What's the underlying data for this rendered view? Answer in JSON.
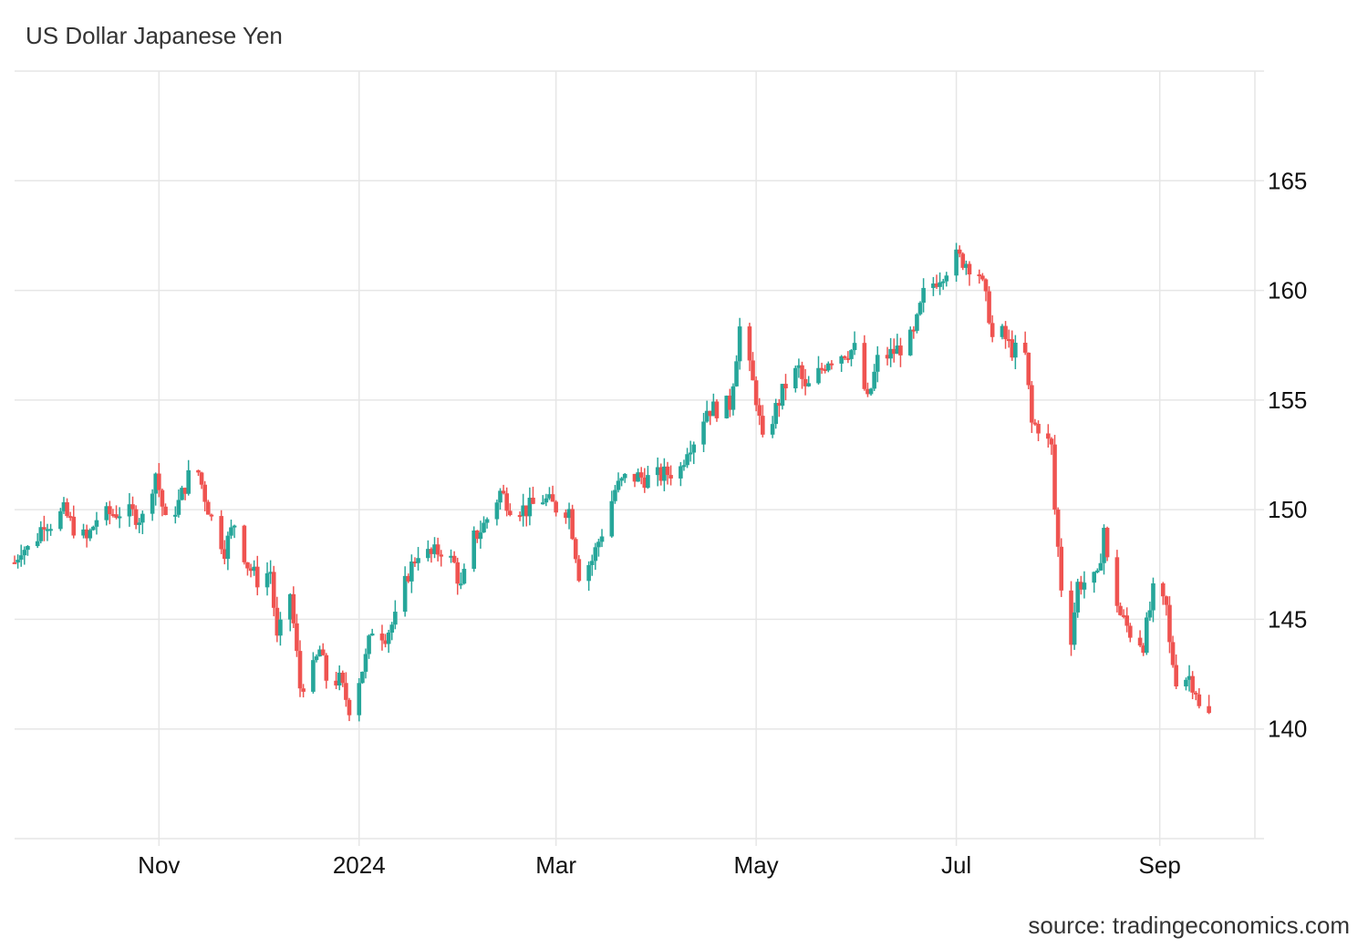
{
  "chart_data": {
    "type": "candlestick",
    "title": "US Dollar Japanese Yen",
    "source": "source: tradingeconomics.com",
    "xlabel": "",
    "ylabel": "",
    "ylim": [
      135,
      170
    ],
    "y_ticks": [
      140,
      145,
      150,
      155,
      160,
      165
    ],
    "x_ticks": [
      {
        "date": "2023-11-01",
        "label": "Nov"
      },
      {
        "date": "2024-01-01",
        "label": "2024"
      },
      {
        "date": "2024-03-01",
        "label": "Mar"
      },
      {
        "date": "2024-05-01",
        "label": "May"
      },
      {
        "date": "2024-07-01",
        "label": "Jul"
      },
      {
        "date": "2024-09-01",
        "label": "Sep"
      }
    ],
    "x_range": [
      "2023-09-18",
      "2024-09-30"
    ],
    "grid": true,
    "legend": "none",
    "colors": {
      "up": "#26a69a",
      "down": "#ef5350",
      "grid": "#e6e6e6",
      "text": "#333333"
    },
    "close_series": [
      {
        "date": "2023-09-18",
        "close": 147.6
      },
      {
        "date": "2023-09-20",
        "close": 148.3
      },
      {
        "date": "2023-09-22",
        "close": 148.2
      },
      {
        "date": "2023-09-25",
        "close": 148.8
      },
      {
        "date": "2023-09-27",
        "close": 149.5
      },
      {
        "date": "2023-09-29",
        "close": 149.4
      },
      {
        "date": "2023-10-03",
        "close": 149.9
      },
      {
        "date": "2023-10-06",
        "close": 149.2
      },
      {
        "date": "2023-10-10",
        "close": 148.6
      },
      {
        "date": "2023-10-13",
        "close": 149.6
      },
      {
        "date": "2023-10-17",
        "close": 149.8
      },
      {
        "date": "2023-10-20",
        "close": 149.9
      },
      {
        "date": "2023-10-24",
        "close": 149.8
      },
      {
        "date": "2023-10-27",
        "close": 149.6
      },
      {
        "date": "2023-10-31",
        "close": 151.7
      },
      {
        "date": "2023-11-03",
        "close": 149.4
      },
      {
        "date": "2023-11-07",
        "close": 150.3
      },
      {
        "date": "2023-11-10",
        "close": 151.5
      },
      {
        "date": "2023-11-13",
        "close": 151.7
      },
      {
        "date": "2023-11-15",
        "close": 150.6
      },
      {
        "date": "2023-11-17",
        "close": 149.6
      },
      {
        "date": "2023-11-21",
        "close": 148.2
      },
      {
        "date": "2023-11-24",
        "close": 149.4
      },
      {
        "date": "2023-11-28",
        "close": 147.5
      },
      {
        "date": "2023-12-01",
        "close": 146.8
      },
      {
        "date": "2023-12-05",
        "close": 147.2
      },
      {
        "date": "2023-12-07",
        "close": 144.0
      },
      {
        "date": "2023-12-11",
        "close": 146.2
      },
      {
        "date": "2023-12-14",
        "close": 141.9
      },
      {
        "date": "2023-12-18",
        "close": 142.7
      },
      {
        "date": "2023-12-20",
        "close": 143.6
      },
      {
        "date": "2023-12-22",
        "close": 142.3
      },
      {
        "date": "2023-12-26",
        "close": 142.2
      },
      {
        "date": "2023-12-29",
        "close": 141.0
      },
      {
        "date": "2024-01-03",
        "close": 143.2
      },
      {
        "date": "2024-01-05",
        "close": 144.6
      },
      {
        "date": "2024-01-09",
        "close": 144.3
      },
      {
        "date": "2024-01-12",
        "close": 145.0
      },
      {
        "date": "2024-01-16",
        "close": 147.1
      },
      {
        "date": "2024-01-19",
        "close": 148.1
      },
      {
        "date": "2024-01-23",
        "close": 147.9
      },
      {
        "date": "2024-01-26",
        "close": 148.2
      },
      {
        "date": "2024-01-30",
        "close": 147.5
      },
      {
        "date": "2024-02-01",
        "close": 146.4
      },
      {
        "date": "2024-02-05",
        "close": 148.7
      },
      {
        "date": "2024-02-08",
        "close": 149.3
      },
      {
        "date": "2024-02-13",
        "close": 150.8
      },
      {
        "date": "2024-02-16",
        "close": 150.2
      },
      {
        "date": "2024-02-21",
        "close": 150.0
      },
      {
        "date": "2024-02-26",
        "close": 150.5
      },
      {
        "date": "2024-03-01",
        "close": 150.1
      },
      {
        "date": "2024-03-05",
        "close": 150.0
      },
      {
        "date": "2024-03-08",
        "close": 147.1
      },
      {
        "date": "2024-03-12",
        "close": 147.7
      },
      {
        "date": "2024-03-15",
        "close": 149.0
      },
      {
        "date": "2024-03-19",
        "close": 150.9
      },
      {
        "date": "2024-03-22",
        "close": 151.4
      },
      {
        "date": "2024-03-26",
        "close": 151.5
      },
      {
        "date": "2024-03-29",
        "close": 151.4
      },
      {
        "date": "2024-04-03",
        "close": 151.6
      },
      {
        "date": "2024-04-08",
        "close": 151.9
      },
      {
        "date": "2024-04-10",
        "close": 152.9
      },
      {
        "date": "2024-04-12",
        "close": 153.2
      },
      {
        "date": "2024-04-16",
        "close": 154.6
      },
      {
        "date": "2024-04-19",
        "close": 154.6
      },
      {
        "date": "2024-04-23",
        "close": 154.8
      },
      {
        "date": "2024-04-26",
        "close": 158.3
      },
      {
        "date": "2024-04-29",
        "close": 156.4
      },
      {
        "date": "2024-05-01",
        "close": 155.1
      },
      {
        "date": "2024-05-03",
        "close": 153.0
      },
      {
        "date": "2024-05-07",
        "close": 154.6
      },
      {
        "date": "2024-05-10",
        "close": 155.7
      },
      {
        "date": "2024-05-14",
        "close": 156.4
      },
      {
        "date": "2024-05-16",
        "close": 155.4
      },
      {
        "date": "2024-05-20",
        "close": 156.2
      },
      {
        "date": "2024-05-23",
        "close": 156.9
      },
      {
        "date": "2024-05-28",
        "close": 157.2
      },
      {
        "date": "2024-05-31",
        "close": 157.3
      },
      {
        "date": "2024-06-04",
        "close": 154.9
      },
      {
        "date": "2024-06-07",
        "close": 156.8
      },
      {
        "date": "2024-06-11",
        "close": 157.1
      },
      {
        "date": "2024-06-14",
        "close": 157.4
      },
      {
        "date": "2024-06-18",
        "close": 157.9
      },
      {
        "date": "2024-06-21",
        "close": 159.8
      },
      {
        "date": "2024-06-26",
        "close": 160.7
      },
      {
        "date": "2024-07-01",
        "close": 161.5
      },
      {
        "date": "2024-07-04",
        "close": 161.3
      },
      {
        "date": "2024-07-08",
        "close": 160.8
      },
      {
        "date": "2024-07-11",
        "close": 158.9
      },
      {
        "date": "2024-07-12",
        "close": 157.8
      },
      {
        "date": "2024-07-15",
        "close": 158.0
      },
      {
        "date": "2024-07-18",
        "close": 157.3
      },
      {
        "date": "2024-07-22",
        "close": 157.0
      },
      {
        "date": "2024-07-24",
        "close": 153.9
      },
      {
        "date": "2024-07-26",
        "close": 153.8
      },
      {
        "date": "2024-07-30",
        "close": 152.8
      },
      {
        "date": "2024-07-31",
        "close": 150.0
      },
      {
        "date": "2024-08-02",
        "close": 146.5
      },
      {
        "date": "2024-08-05",
        "close": 144.2
      },
      {
        "date": "2024-08-07",
        "close": 146.6
      },
      {
        "date": "2024-08-09",
        "close": 146.7
      },
      {
        "date": "2024-08-13",
        "close": 146.8
      },
      {
        "date": "2024-08-15",
        "close": 149.2
      },
      {
        "date": "2024-08-16",
        "close": 147.6
      },
      {
        "date": "2024-08-20",
        "close": 145.2
      },
      {
        "date": "2024-08-23",
        "close": 144.4
      },
      {
        "date": "2024-08-27",
        "close": 143.9
      },
      {
        "date": "2024-08-30",
        "close": 146.2
      },
      {
        "date": "2024-09-03",
        "close": 145.5
      },
      {
        "date": "2024-09-04",
        "close": 143.8
      },
      {
        "date": "2024-09-06",
        "close": 142.3
      },
      {
        "date": "2024-09-10",
        "close": 142.4
      },
      {
        "date": "2024-09-12",
        "close": 141.8
      },
      {
        "date": "2024-09-13",
        "close": 140.9
      },
      {
        "date": "2024-09-16",
        "close": 140.6
      }
    ]
  }
}
